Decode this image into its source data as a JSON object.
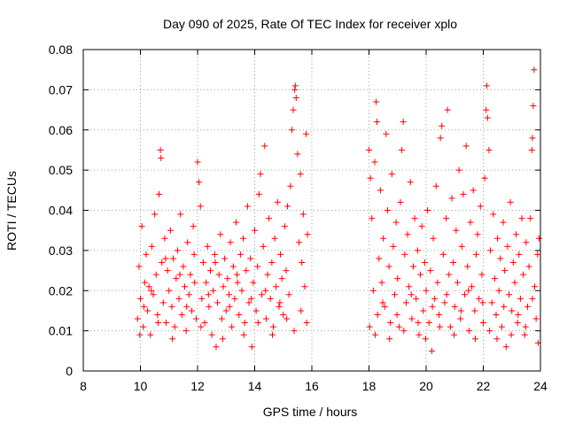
{
  "chart_data": {
    "type": "scatter",
    "title": "Day 090 of 2025, Rate Of TEC Index for receiver xplo",
    "xlabel": "GPS time / hours",
    "ylabel": "ROTI / TECUs",
    "xlim": [
      8,
      24
    ],
    "ylim": [
      0,
      0.08
    ],
    "x_ticks": [
      8,
      10,
      12,
      14,
      16,
      18,
      20,
      22,
      24
    ],
    "x_tick_labels": [
      "8",
      "10",
      "12",
      "14",
      "16",
      "18",
      "20",
      "22",
      "24"
    ],
    "y_ticks": [
      0,
      0.01,
      0.02,
      0.03,
      0.04,
      0.05,
      0.06,
      0.07,
      0.08
    ],
    "y_tick_labels": [
      "0",
      "0.01",
      "0.02",
      "0.03",
      "0.04",
      "0.05",
      "0.06",
      "0.07",
      "0.08"
    ],
    "grid": true,
    "marker": "+",
    "series": [
      {
        "name": "ROTI",
        "color": "#ff0000",
        "points": [
          [
            9.9,
            0.013
          ],
          [
            9.95,
            0.026
          ],
          [
            10.0,
            0.018
          ],
          [
            10.05,
            0.036
          ],
          [
            10.1,
            0.011
          ],
          [
            10.15,
            0.022
          ],
          [
            10.2,
            0.029
          ],
          [
            10.25,
            0.015
          ],
          [
            10.3,
            0.021
          ],
          [
            10.35,
            0.009
          ],
          [
            10.4,
            0.031
          ],
          [
            10.45,
            0.019
          ],
          [
            10.5,
            0.039
          ],
          [
            10.55,
            0.024
          ],
          [
            10.6,
            0.014
          ],
          [
            10.65,
            0.044
          ],
          [
            10.7,
            0.055
          ],
          [
            10.72,
            0.053
          ],
          [
            10.75,
            0.027
          ],
          [
            10.8,
            0.017
          ],
          [
            10.85,
            0.033
          ],
          [
            10.9,
            0.012
          ],
          [
            10.95,
            0.025
          ],
          [
            11.0,
            0.02
          ],
          [
            11.05,
            0.035
          ],
          [
            11.1,
            0.016
          ],
          [
            11.15,
            0.028
          ],
          [
            11.2,
            0.011
          ],
          [
            11.25,
            0.023
          ],
          [
            11.3,
            0.03
          ],
          [
            11.35,
            0.018
          ],
          [
            11.4,
            0.039
          ],
          [
            11.45,
            0.014
          ],
          [
            11.5,
            0.026
          ],
          [
            11.55,
            0.021
          ],
          [
            11.6,
            0.01
          ],
          [
            11.65,
            0.032
          ],
          [
            11.7,
            0.019
          ],
          [
            11.75,
            0.024
          ],
          [
            11.8,
            0.015
          ],
          [
            11.85,
            0.036
          ],
          [
            11.9,
            0.022
          ],
          [
            11.95,
            0.013
          ],
          [
            12.0,
            0.052
          ],
          [
            12.05,
            0.047
          ],
          [
            12.1,
            0.041
          ],
          [
            12.15,
            0.018
          ],
          [
            12.2,
            0.027
          ],
          [
            12.25,
            0.012
          ],
          [
            12.3,
            0.022
          ],
          [
            12.35,
            0.031
          ],
          [
            12.4,
            0.016
          ],
          [
            12.45,
            0.025
          ],
          [
            12.5,
            0.009
          ],
          [
            12.55,
            0.02
          ],
          [
            12.6,
            0.029
          ],
          [
            12.65,
            0.006
          ],
          [
            12.7,
            0.017
          ],
          [
            12.75,
            0.024
          ],
          [
            12.8,
            0.034
          ],
          [
            12.85,
            0.013
          ],
          [
            12.9,
            0.021
          ],
          [
            12.95,
            0.028
          ],
          [
            13.0,
            0.015
          ],
          [
            13.05,
            0.023
          ],
          [
            13.1,
            0.019
          ],
          [
            13.15,
            0.032
          ],
          [
            13.2,
            0.011
          ],
          [
            13.25,
            0.026
          ],
          [
            13.3,
            0.018
          ],
          [
            13.35,
            0.037
          ],
          [
            13.4,
            0.022
          ],
          [
            13.45,
            0.014
          ],
          [
            13.5,
            0.029
          ],
          [
            13.55,
            0.02
          ],
          [
            13.6,
            0.033
          ],
          [
            13.65,
            0.012
          ],
          [
            13.7,
            0.025
          ],
          [
            13.75,
            0.041
          ],
          [
            13.8,
            0.017
          ],
          [
            13.85,
            0.028
          ],
          [
            13.9,
            0.006
          ],
          [
            13.95,
            0.022
          ],
          [
            14.0,
            0.035
          ],
          [
            14.05,
            0.015
          ],
          [
            14.1,
            0.026
          ],
          [
            14.15,
            0.044
          ],
          [
            14.2,
            0.049
          ],
          [
            14.25,
            0.019
          ],
          [
            14.3,
            0.031
          ],
          [
            14.35,
            0.056
          ],
          [
            14.4,
            0.013
          ],
          [
            14.45,
            0.024
          ],
          [
            14.5,
            0.038
          ],
          [
            14.55,
            0.018
          ],
          [
            14.6,
            0.027
          ],
          [
            14.65,
            0.011
          ],
          [
            14.7,
            0.033
          ],
          [
            14.75,
            0.021
          ],
          [
            14.8,
            0.042
          ],
          [
            14.85,
            0.016
          ],
          [
            14.9,
            0.029
          ],
          [
            14.95,
            0.023
          ],
          [
            15.0,
            0.014
          ],
          [
            15.05,
            0.036
          ],
          [
            15.1,
            0.025
          ],
          [
            15.15,
            0.041
          ],
          [
            15.2,
            0.019
          ],
          [
            15.25,
            0.046
          ],
          [
            15.3,
            0.06
          ],
          [
            15.35,
            0.065
          ],
          [
            15.4,
            0.07
          ],
          [
            15.42,
            0.071
          ],
          [
            15.45,
            0.068
          ],
          [
            15.5,
            0.054
          ],
          [
            15.55,
            0.032
          ],
          [
            15.6,
            0.049
          ],
          [
            15.65,
            0.027
          ],
          [
            15.7,
            0.039
          ],
          [
            15.75,
            0.021
          ],
          [
            15.8,
            0.059
          ],
          [
            15.85,
            0.034
          ],
          [
            9.98,
            0.009
          ],
          [
            10.12,
            0.016
          ],
          [
            10.38,
            0.02
          ],
          [
            10.62,
            0.012
          ],
          [
            10.88,
            0.028
          ],
          [
            11.12,
            0.008
          ],
          [
            11.38,
            0.024
          ],
          [
            11.62,
            0.016
          ],
          [
            11.88,
            0.029
          ],
          [
            12.12,
            0.011
          ],
          [
            12.38,
            0.019
          ],
          [
            12.62,
            0.027
          ],
          [
            12.88,
            0.008
          ],
          [
            13.12,
            0.016
          ],
          [
            13.38,
            0.024
          ],
          [
            13.62,
            0.009
          ],
          [
            13.88,
            0.018
          ],
          [
            14.12,
            0.012
          ],
          [
            14.38,
            0.02
          ],
          [
            14.62,
            0.009
          ],
          [
            14.88,
            0.017
          ],
          [
            15.12,
            0.013
          ],
          [
            15.38,
            0.01
          ],
          [
            15.62,
            0.015
          ],
          [
            15.82,
            0.012
          ],
          [
            18.0,
            0.055
          ],
          [
            18.05,
            0.048
          ],
          [
            18.1,
            0.038
          ],
          [
            18.15,
            0.02
          ],
          [
            18.2,
            0.052
          ],
          [
            18.25,
            0.067
          ],
          [
            18.28,
            0.062
          ],
          [
            18.3,
            0.014
          ],
          [
            18.35,
            0.028
          ],
          [
            18.4,
            0.045
          ],
          [
            18.45,
            0.022
          ],
          [
            18.5,
            0.033
          ],
          [
            18.55,
            0.016
          ],
          [
            18.6,
            0.059
          ],
          [
            18.65,
            0.04
          ],
          [
            18.7,
            0.026
          ],
          [
            18.75,
            0.012
          ],
          [
            18.8,
            0.049
          ],
          [
            18.85,
            0.031
          ],
          [
            18.9,
            0.019
          ],
          [
            18.95,
            0.037
          ],
          [
            19.0,
            0.023
          ],
          [
            19.05,
            0.011
          ],
          [
            19.1,
            0.042
          ],
          [
            19.15,
            0.055
          ],
          [
            19.2,
            0.062
          ],
          [
            19.25,
            0.029
          ],
          [
            19.3,
            0.017
          ],
          [
            19.35,
            0.034
          ],
          [
            19.4,
            0.021
          ],
          [
            19.45,
            0.047
          ],
          [
            19.5,
            0.013
          ],
          [
            19.55,
            0.026
          ],
          [
            19.6,
            0.038
          ],
          [
            19.65,
            0.018
          ],
          [
            19.7,
            0.03
          ],
          [
            19.75,
            0.009
          ],
          [
            19.8,
            0.024
          ],
          [
            19.85,
            0.036
          ],
          [
            19.9,
            0.015
          ],
          [
            19.95,
            0.027
          ],
          [
            20.0,
            0.02
          ],
          [
            20.05,
            0.04
          ],
          [
            20.1,
            0.012
          ],
          [
            20.15,
            0.025
          ],
          [
            20.2,
            0.005
          ],
          [
            20.25,
            0.033
          ],
          [
            20.3,
            0.018
          ],
          [
            20.35,
            0.046
          ],
          [
            20.4,
            0.022
          ],
          [
            20.45,
            0.014
          ],
          [
            20.5,
            0.058
          ],
          [
            20.55,
            0.061
          ],
          [
            20.6,
            0.029
          ],
          [
            20.65,
            0.017
          ],
          [
            20.7,
            0.038
          ],
          [
            20.75,
            0.065
          ],
          [
            20.8,
            0.024
          ],
          [
            20.85,
            0.011
          ],
          [
            20.9,
            0.043
          ],
          [
            20.95,
            0.027
          ],
          [
            21.0,
            0.016
          ],
          [
            21.05,
            0.035
          ],
          [
            21.1,
            0.022
          ],
          [
            21.15,
            0.05
          ],
          [
            21.2,
            0.013
          ],
          [
            21.25,
            0.031
          ],
          [
            21.3,
            0.044
          ],
          [
            21.35,
            0.019
          ],
          [
            21.4,
            0.056
          ],
          [
            21.45,
            0.026
          ],
          [
            21.5,
            0.01
          ],
          [
            21.55,
            0.037
          ],
          [
            21.6,
            0.021
          ],
          [
            21.65,
            0.045
          ],
          [
            21.7,
            0.015
          ],
          [
            21.75,
            0.029
          ],
          [
            21.8,
            0.034
          ],
          [
            21.85,
            0.018
          ],
          [
            21.9,
            0.041
          ],
          [
            21.95,
            0.024
          ],
          [
            22.0,
            0.012
          ],
          [
            22.05,
            0.048
          ],
          [
            22.1,
            0.065
          ],
          [
            22.12,
            0.071
          ],
          [
            22.15,
            0.063
          ],
          [
            22.2,
            0.055
          ],
          [
            22.25,
            0.03
          ],
          [
            22.3,
            0.017
          ],
          [
            22.35,
            0.039
          ],
          [
            22.4,
            0.023
          ],
          [
            22.45,
            0.014
          ],
          [
            22.5,
            0.033
          ],
          [
            22.55,
            0.02
          ],
          [
            22.6,
            0.028
          ],
          [
            22.65,
            0.011
          ],
          [
            22.7,
            0.037
          ],
          [
            22.75,
            0.025
          ],
          [
            22.8,
            0.006
          ],
          [
            22.85,
            0.031
          ],
          [
            22.9,
            0.019
          ],
          [
            22.95,
            0.042
          ],
          [
            23.0,
            0.015
          ],
          [
            23.05,
            0.027
          ],
          [
            23.1,
            0.022
          ],
          [
            23.15,
            0.034
          ],
          [
            23.2,
            0.012
          ],
          [
            23.25,
            0.029
          ],
          [
            23.3,
            0.018
          ],
          [
            23.35,
            0.038
          ],
          [
            23.4,
            0.024
          ],
          [
            23.45,
            0.009
          ],
          [
            23.5,
            0.032
          ],
          [
            23.55,
            0.016
          ],
          [
            23.6,
            0.026
          ],
          [
            23.65,
            0.038
          ],
          [
            23.7,
            0.055
          ],
          [
            23.72,
            0.058
          ],
          [
            23.75,
            0.066
          ],
          [
            23.78,
            0.075
          ],
          [
            23.8,
            0.021
          ],
          [
            23.85,
            0.013
          ],
          [
            23.9,
            0.029
          ],
          [
            23.95,
            0.033
          ],
          [
            18.02,
            0.011
          ],
          [
            18.22,
            0.009
          ],
          [
            18.48,
            0.017
          ],
          [
            18.72,
            0.008
          ],
          [
            18.98,
            0.014
          ],
          [
            19.22,
            0.01
          ],
          [
            19.48,
            0.019
          ],
          [
            19.72,
            0.012
          ],
          [
            19.98,
            0.008
          ],
          [
            20.22,
            0.016
          ],
          [
            20.48,
            0.011
          ],
          [
            20.72,
            0.019
          ],
          [
            20.98,
            0.009
          ],
          [
            21.22,
            0.015
          ],
          [
            21.48,
            0.02
          ],
          [
            21.72,
            0.008
          ],
          [
            21.98,
            0.017
          ],
          [
            22.22,
            0.01
          ],
          [
            22.48,
            0.008
          ],
          [
            22.72,
            0.016
          ],
          [
            22.98,
            0.009
          ],
          [
            23.22,
            0.014
          ],
          [
            23.48,
            0.011
          ],
          [
            23.72,
            0.018
          ],
          [
            23.92,
            0.007
          ]
        ]
      }
    ]
  }
}
